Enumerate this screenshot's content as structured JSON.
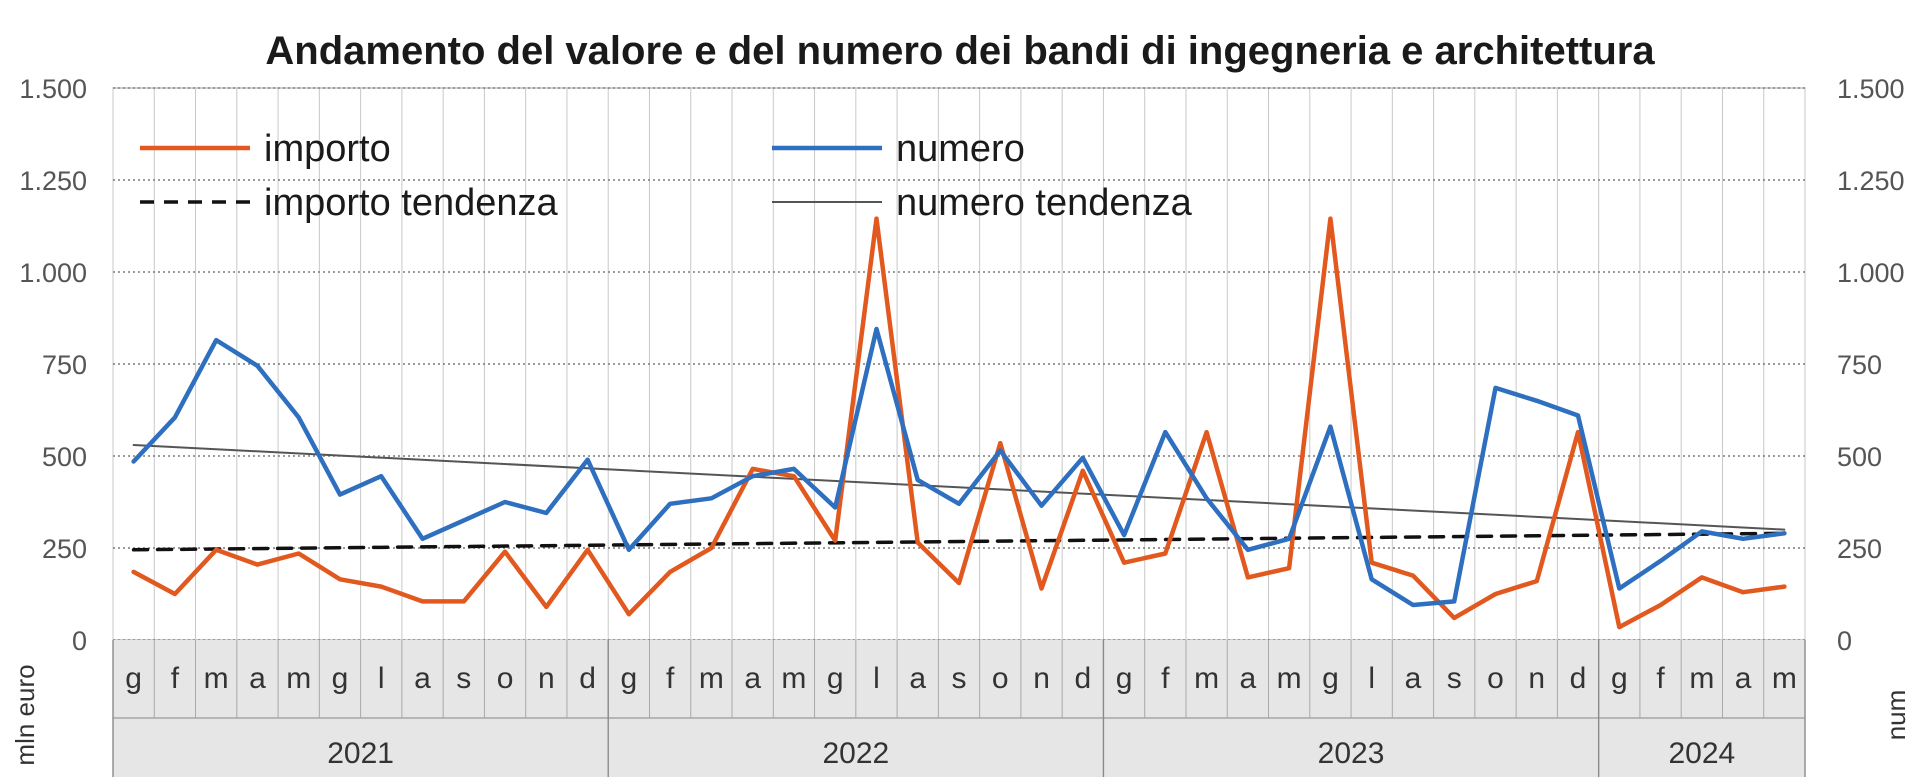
{
  "chart_data": {
    "type": "line",
    "title": "Andamento del valore e del numero dei bandi di ingegneria e architettura",
    "ylabel_left": "mln euro",
    "ylabel_right": "num",
    "ylim": [
      0,
      1500
    ],
    "yticks": [
      0,
      250,
      500,
      750,
      1000,
      1250,
      1500
    ],
    "ytick_labels": [
      "0",
      "250",
      "500",
      "750",
      "1.000",
      "1.250",
      "1.500"
    ],
    "months": [
      "g",
      "f",
      "m",
      "a",
      "m",
      "g",
      "l",
      "a",
      "s",
      "o",
      "n",
      "d",
      "g",
      "f",
      "m",
      "a",
      "m",
      "g",
      "l",
      "a",
      "s",
      "o",
      "n",
      "d",
      "g",
      "f",
      "m",
      "a",
      "m",
      "g",
      "l",
      "a",
      "s",
      "o",
      "n",
      "d",
      "g",
      "f",
      "m",
      "a",
      "m"
    ],
    "years": [
      {
        "label": "2021",
        "months": 12
      },
      {
        "label": "2022",
        "months": 12
      },
      {
        "label": "2023",
        "months": 12
      },
      {
        "label": "2024",
        "months": 5
      }
    ],
    "legend_placement": "top-left",
    "grid": true,
    "series": [
      {
        "name": "importo",
        "color": "#e2591f",
        "style": "solid",
        "values": [
          185,
          125,
          245,
          205,
          235,
          165,
          145,
          105,
          105,
          240,
          90,
          245,
          70,
          185,
          250,
          465,
          445,
          270,
          1145,
          265,
          155,
          535,
          140,
          460,
          210,
          235,
          565,
          170,
          195,
          1145,
          210,
          175,
          60,
          125,
          160,
          565,
          35,
          95,
          170,
          130,
          145
        ]
      },
      {
        "name": "numero",
        "color": "#2e6fbf",
        "style": "solid",
        "values": [
          485,
          605,
          815,
          745,
          605,
          395,
          445,
          275,
          325,
          375,
          345,
          490,
          245,
          370,
          385,
          445,
          465,
          360,
          845,
          435,
          370,
          515,
          365,
          495,
          285,
          565,
          385,
          245,
          275,
          580,
          165,
          95,
          105,
          685,
          650,
          610,
          140,
          215,
          295,
          275,
          290
        ]
      },
      {
        "name": "importo tendenza",
        "color": "#111111",
        "style": "dashed",
        "values": [
          245,
          290
        ]
      },
      {
        "name": "numero tendenza",
        "color": "#555555",
        "style": "thin",
        "values": [
          530,
          300
        ]
      }
    ]
  }
}
